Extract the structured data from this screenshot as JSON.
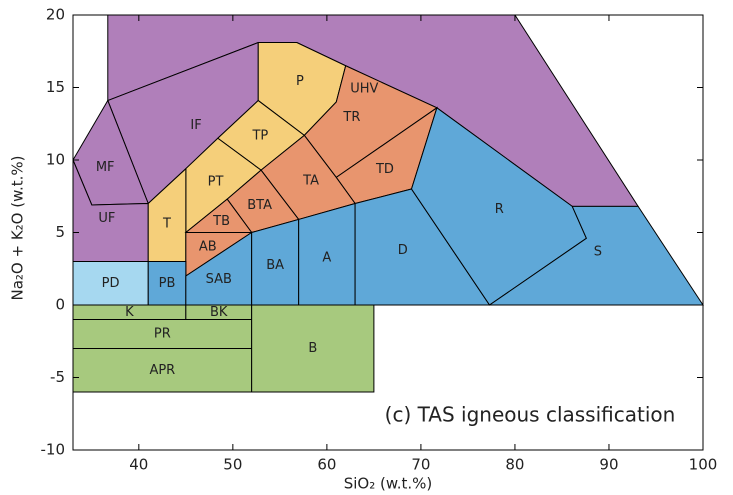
{
  "chart_data": {
    "type": "region",
    "xlabel": "SiO₂ (w.t.%)",
    "ylabel": "Na₂O + K₂O (w.t.%)",
    "annotation": "(c) TAS igneous classification",
    "xlim": [
      33,
      100
    ],
    "ylim": [
      -10,
      20
    ],
    "xticks": [
      40,
      50,
      60,
      70,
      80,
      90,
      100
    ],
    "yticks": [
      -10,
      -5,
      0,
      5,
      10,
      15,
      20
    ],
    "regions": [
      {
        "label": "UHV",
        "color": "#b07fba",
        "points": [
          [
            36.7,
            20
          ],
          [
            80,
            20
          ],
          [
            93.1,
            6.8
          ],
          [
            86.1,
            6.8
          ],
          [
            71.7,
            13.6
          ],
          [
            62,
            16.5
          ],
          [
            56.8,
            18.1
          ],
          [
            52.7,
            18.1
          ],
          [
            36.7,
            14.1
          ]
        ]
      },
      {
        "label": "IF",
        "color": "#b07fba",
        "points": [
          [
            36.7,
            14.1
          ],
          [
            52.7,
            18.1
          ],
          [
            52.7,
            14.1
          ],
          [
            48.4,
            11.5
          ],
          [
            45,
            9.4
          ],
          [
            41,
            7
          ]
        ]
      },
      {
        "label": "MF",
        "color": "#b07fba",
        "points": [
          [
            33,
            10
          ],
          [
            36.7,
            14.1
          ],
          [
            41,
            7
          ],
          [
            35,
            6.9
          ]
        ]
      },
      {
        "label": "UF",
        "color": "#b07fba",
        "points": [
          [
            33,
            3
          ],
          [
            41,
            3
          ],
          [
            41,
            7
          ],
          [
            35,
            6.9
          ],
          [
            33,
            10
          ]
        ]
      },
      {
        "label": "P",
        "color": "#f5cf7a",
        "points": [
          [
            52.7,
            18.1
          ],
          [
            56.8,
            18.1
          ],
          [
            62,
            16.5
          ],
          [
            61,
            14
          ],
          [
            57.6,
            11.7
          ],
          [
            52.7,
            14.1
          ]
        ]
      },
      {
        "label": "TP",
        "color": "#f5cf7a",
        "points": [
          [
            52.7,
            14.1
          ],
          [
            57.6,
            11.7
          ],
          [
            53,
            9.3
          ],
          [
            48.4,
            11.5
          ]
        ]
      },
      {
        "label": "PT",
        "color": "#f5cf7a",
        "points": [
          [
            45,
            9.4
          ],
          [
            48.4,
            11.5
          ],
          [
            53,
            9.3
          ],
          [
            49.4,
            7.3
          ],
          [
            45,
            5
          ]
        ]
      },
      {
        "label": "T",
        "color": "#f5cf7a",
        "points": [
          [
            41,
            3
          ],
          [
            45,
            3
          ],
          [
            45,
            9.4
          ],
          [
            41,
            7
          ]
        ]
      },
      {
        "label": "TR",
        "color": "#e8956e",
        "points": [
          [
            61,
            14
          ],
          [
            62,
            16.5
          ],
          [
            71.7,
            13.6
          ],
          [
            61,
            8.8
          ],
          [
            57.6,
            11.7
          ]
        ]
      },
      {
        "label": "TD",
        "color": "#e8956e",
        "points": [
          [
            61,
            8.8
          ],
          [
            63,
            7
          ],
          [
            69,
            8
          ],
          [
            71.7,
            13.6
          ]
        ]
      },
      {
        "label": "TA",
        "color": "#e8956e",
        "points": [
          [
            53,
            9.3
          ],
          [
            57,
            5.9
          ],
          [
            63,
            7
          ],
          [
            61,
            8.8
          ],
          [
            57.6,
            11.7
          ]
        ]
      },
      {
        "label": "BTA",
        "color": "#e8956e",
        "points": [
          [
            49.4,
            7.3
          ],
          [
            52,
            5
          ],
          [
            57,
            5.9
          ],
          [
            53,
            9.3
          ]
        ]
      },
      {
        "label": "TB",
        "color": "#e8956e",
        "points": [
          [
            45,
            5
          ],
          [
            49.4,
            7.3
          ],
          [
            52,
            5
          ]
        ]
      },
      {
        "label": "AB",
        "color": "#e8956e",
        "points": [
          [
            45,
            2
          ],
          [
            52,
            5
          ],
          [
            45,
            5
          ]
        ]
      },
      {
        "label": "PD",
        "color": "#a6d8f0",
        "points": [
          [
            33,
            0
          ],
          [
            41,
            0
          ],
          [
            41,
            3
          ],
          [
            33,
            3
          ]
        ]
      },
      {
        "label": "PB",
        "color": "#5fa8d8",
        "points": [
          [
            41,
            0
          ],
          [
            45,
            0
          ],
          [
            45,
            3
          ],
          [
            41,
            3
          ]
        ]
      },
      {
        "label": "SAB",
        "color": "#5fa8d8",
        "points": [
          [
            45,
            0
          ],
          [
            52,
            0
          ],
          [
            52,
            5
          ],
          [
            45,
            2
          ]
        ]
      },
      {
        "label": "BA",
        "color": "#5fa8d8",
        "points": [
          [
            52,
            0
          ],
          [
            57,
            0
          ],
          [
            57,
            5.9
          ],
          [
            52,
            5
          ]
        ]
      },
      {
        "label": "A",
        "color": "#5fa8d8",
        "points": [
          [
            57,
            0
          ],
          [
            63,
            0
          ],
          [
            63,
            7
          ],
          [
            57,
            5.9
          ]
        ]
      },
      {
        "label": "D",
        "color": "#5fa8d8",
        "points": [
          [
            63,
            0
          ],
          [
            77.3,
            0
          ],
          [
            69,
            8
          ],
          [
            63,
            7
          ]
        ]
      },
      {
        "label": "R",
        "color": "#5fa8d8",
        "points": [
          [
            69,
            8
          ],
          [
            71.7,
            13.6
          ],
          [
            86.1,
            6.8
          ],
          [
            87.6,
            4.6
          ],
          [
            77.3,
            0
          ]
        ]
      },
      {
        "label": "S",
        "color": "#5fa8d8",
        "points": [
          [
            77.3,
            0
          ],
          [
            87.6,
            4.6
          ],
          [
            86.1,
            6.8
          ],
          [
            93.1,
            6.8
          ],
          [
            100,
            0
          ]
        ]
      },
      {
        "label": "K",
        "color": "#a7c97e",
        "points": [
          [
            33,
            -1
          ],
          [
            45,
            -1
          ],
          [
            45,
            0
          ],
          [
            33,
            0
          ]
        ]
      },
      {
        "label": "BK",
        "color": "#a7c97e",
        "points": [
          [
            45,
            -1
          ],
          [
            52,
            -1
          ],
          [
            52,
            0
          ],
          [
            45,
            0
          ]
        ]
      },
      {
        "label": "PR",
        "color": "#a7c97e",
        "points": [
          [
            33,
            -3
          ],
          [
            52,
            -3
          ],
          [
            52,
            -1
          ],
          [
            33,
            -1
          ]
        ]
      },
      {
        "label": "APR",
        "color": "#a7c97e",
        "points": [
          [
            33,
            -6
          ],
          [
            52,
            -6
          ],
          [
            52,
            -3
          ],
          [
            33,
            -3
          ]
        ]
      },
      {
        "label": "B",
        "color": "#a7c97e",
        "points": [
          [
            52,
            -6
          ],
          [
            65,
            -6
          ],
          [
            65,
            0
          ],
          [
            52,
            0
          ]
        ]
      }
    ]
  }
}
